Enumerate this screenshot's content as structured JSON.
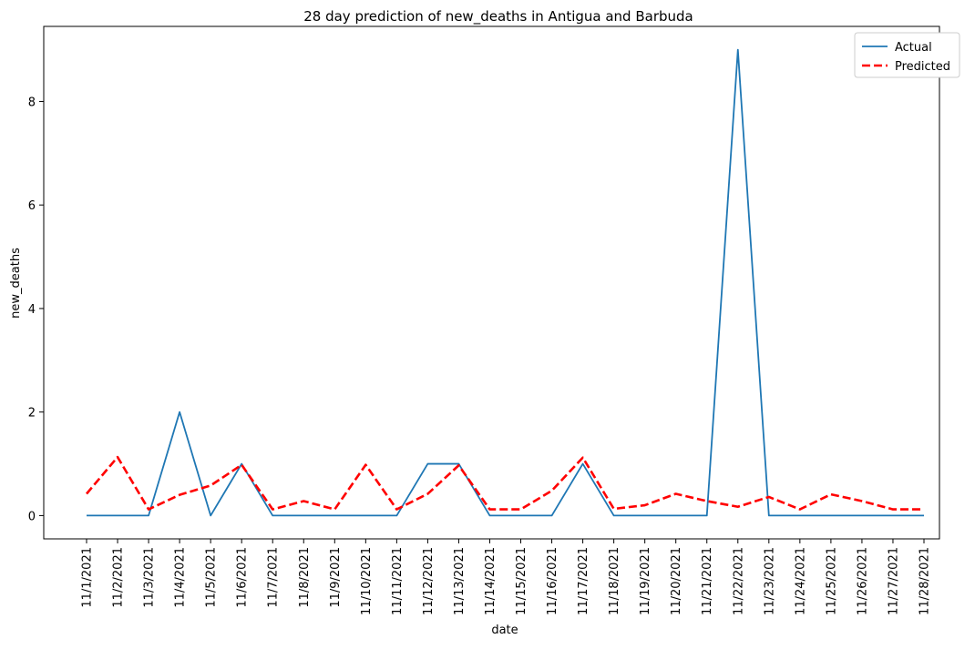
{
  "chart_data": {
    "type": "line",
    "title": "28 day prediction of new_deaths in Antigua and Barbuda",
    "xlabel": "date",
    "ylabel": "new_deaths",
    "ylim": [
      -0.45,
      9.45
    ],
    "yticks": [
      0,
      2,
      4,
      6,
      8
    ],
    "grid": false,
    "legend_position": "top-right",
    "categories": [
      "11/1/2021",
      "11/2/2021",
      "11/3/2021",
      "11/4/2021",
      "11/5/2021",
      "11/6/2021",
      "11/7/2021",
      "11/8/2021",
      "11/9/2021",
      "11/10/2021",
      "11/11/2021",
      "11/12/2021",
      "11/13/2021",
      "11/14/2021",
      "11/15/2021",
      "11/16/2021",
      "11/17/2021",
      "11/18/2021",
      "11/19/2021",
      "11/20/2021",
      "11/21/2021",
      "11/22/2021",
      "11/23/2021",
      "11/24/2021",
      "11/25/2021",
      "11/26/2021",
      "11/27/2021",
      "11/28/2021"
    ],
    "series": [
      {
        "name": "Actual",
        "color": "#1f77b4",
        "style": "solid",
        "values": [
          0,
          0,
          0,
          2,
          0,
          1,
          0,
          0,
          0,
          0,
          0,
          1,
          1,
          0,
          0,
          0,
          1,
          0,
          0,
          0,
          0,
          9,
          0,
          0,
          0,
          0,
          0,
          0
        ]
      },
      {
        "name": "Predicted",
        "color": "#ff0000",
        "style": "dashed",
        "values": [
          0.42,
          1.13,
          0.12,
          0.4,
          0.58,
          0.98,
          0.12,
          0.28,
          0.12,
          0.98,
          0.12,
          0.42,
          0.97,
          0.12,
          0.12,
          0.48,
          1.12,
          0.13,
          0.2,
          0.42,
          0.28,
          0.17,
          0.36,
          0.12,
          0.41,
          0.28,
          0.12,
          0.12
        ]
      }
    ]
  }
}
